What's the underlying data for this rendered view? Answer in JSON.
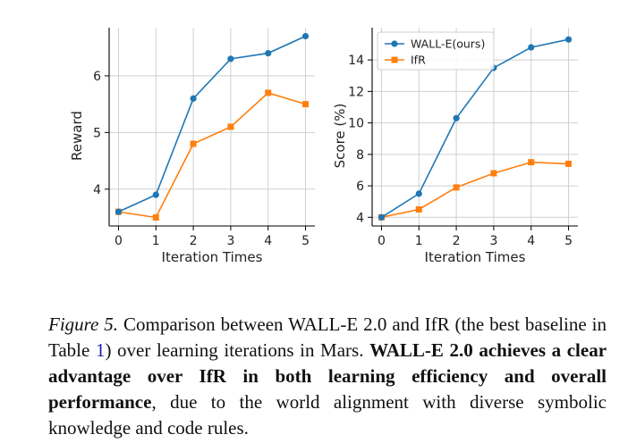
{
  "chart_data": [
    {
      "type": "line",
      "x": [
        0,
        1,
        2,
        3,
        4,
        5
      ],
      "xticks": [
        "0",
        "1",
        "2",
        "3",
        "4",
        "5"
      ],
      "yticks": [
        "4",
        "5",
        "6"
      ],
      "xlabel": "Iteration Times",
      "ylabel": "Reward",
      "xlim": [
        -0.25,
        5.25
      ],
      "ylim": [
        3.35,
        6.85
      ],
      "grid": true,
      "legend": "none",
      "series": [
        {
          "values": [
            3.6,
            3.9,
            5.6,
            6.3,
            6.4,
            6.7
          ],
          "color": "#1f77b4",
          "marker": "circle"
        },
        {
          "values": [
            3.6,
            3.5,
            4.8,
            5.1,
            5.7,
            5.5
          ],
          "color": "#ff7f0e",
          "marker": "square"
        }
      ]
    },
    {
      "type": "line",
      "x": [
        0,
        1,
        2,
        3,
        4,
        5
      ],
      "xticks": [
        "0",
        "1",
        "2",
        "3",
        "4",
        "5"
      ],
      "yticks": [
        "4",
        "6",
        "8",
        "10",
        "12",
        "14"
      ],
      "xlabel": "Iteration Times",
      "ylabel": "Score (%)",
      "xlim": [
        -0.25,
        5.25
      ],
      "ylim": [
        3.45,
        16.05
      ],
      "grid": true,
      "legend": "top-left",
      "series": [
        {
          "name": "WALL-E(ours)",
          "values": [
            4.0,
            5.5,
            10.3,
            13.5,
            14.8,
            15.3
          ],
          "color": "#1f77b4",
          "marker": "circle"
        },
        {
          "name": "IfR",
          "values": [
            4.0,
            4.5,
            5.9,
            6.8,
            7.5,
            7.4
          ],
          "color": "#ff7f0e",
          "marker": "square"
        }
      ]
    }
  ],
  "caption": {
    "label": "Figure 5.",
    "text_1": " Comparison between WALL-E 2.0 and IfR (the best baseline in Table ",
    "table_ref": "1",
    "text_2": ") over learning iterations in Mars. ",
    "bold": "WALL-E 2.0 achieves a clear advantage over IfR in both learning efficiency and overall performance",
    "text_3": ", due to the world alignment with diverse symbolic knowledge and code rules."
  }
}
